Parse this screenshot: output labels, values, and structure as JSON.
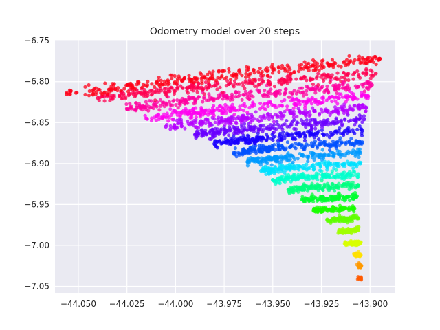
{
  "chart_data": {
    "type": "scatter",
    "title": "Odometry model over 20 steps",
    "xlabel": "",
    "ylabel": "",
    "xlim": [
      -44.062,
      -43.887
    ],
    "ylim": [
      -7.058,
      -6.749
    ],
    "x_ticks": [
      -44.05,
      -44.025,
      -44.0,
      -43.975,
      -43.95,
      -43.925,
      -43.9
    ],
    "x_tick_labels": [
      "−44.050",
      "−44.025",
      "−44.000",
      "−43.975",
      "−43.950",
      "−43.925",
      "−43.900"
    ],
    "y_ticks": [
      -6.75,
      -6.8,
      -6.85,
      -6.9,
      -6.95,
      -7.0,
      -7.05
    ],
    "y_tick_labels": [
      "−6.75",
      "−6.80",
      "−6.85",
      "−6.90",
      "−6.95",
      "−7.00",
      "−7.05"
    ],
    "grid": true,
    "background": "#EAEAF2",
    "gridline_color": "#FFFFFF",
    "colormap": "hsv",
    "series": [
      {
        "step": 0,
        "color": "#FF5A00",
        "points": [
          [
            -43.9055,
            -7.04
          ],
          [
            -43.905,
            -7.04
          ]
        ]
      },
      {
        "step": 1,
        "color": "#FF9A00",
        "points": [
          [
            -43.906,
            -7.025
          ],
          [
            -43.9053,
            -7.024
          ],
          [
            -43.9047,
            -7.026
          ]
        ]
      },
      {
        "step": 2,
        "color": "#FFE000",
        "points": [
          [
            -43.908,
            -7.012
          ],
          [
            -43.9062,
            -7.011
          ],
          [
            -43.9048,
            -7.012
          ]
        ]
      },
      {
        "step": 3,
        "color": "#D8FF00",
        "points": [
          [
            -43.913,
            -6.998
          ],
          [
            -43.909,
            -6.997
          ],
          [
            -43.905,
            -6.997
          ]
        ]
      },
      {
        "step": 4,
        "color": "#A0FF00",
        "points": [
          [
            -43.916,
            -6.983
          ],
          [
            -43.911,
            -6.982
          ],
          [
            -43.906,
            -6.981
          ]
        ]
      },
      {
        "step": 5,
        "color": "#60FF00",
        "points": [
          [
            -43.922,
            -6.969
          ],
          [
            -43.915,
            -6.968
          ],
          [
            -43.906,
            -6.967
          ]
        ]
      },
      {
        "step": 6,
        "color": "#1AFF00",
        "points": [
          [
            -43.929,
            -6.957
          ],
          [
            -43.92,
            -6.956
          ],
          [
            -43.908,
            -6.955
          ]
        ]
      },
      {
        "step": 7,
        "color": "#00FF30",
        "points": [
          [
            -43.935,
            -6.944
          ],
          [
            -43.923,
            -6.943
          ],
          [
            -43.907,
            -6.941
          ]
        ]
      },
      {
        "step": 8,
        "color": "#00FF80",
        "points": [
          [
            -43.942,
            -6.932
          ],
          [
            -43.928,
            -6.929
          ],
          [
            -43.906,
            -6.927
          ]
        ]
      },
      {
        "step": 9,
        "color": "#00FFCC",
        "points": [
          [
            -43.95,
            -6.92
          ],
          [
            -43.935,
            -6.917
          ],
          [
            -43.906,
            -6.913
          ]
        ]
      },
      {
        "step": 10,
        "color": "#00E0FF",
        "points": [
          [
            -43.956,
            -6.909
          ],
          [
            -43.94,
            -6.905
          ],
          [
            -43.905,
            -6.9
          ]
        ]
      },
      {
        "step": 11,
        "color": "#0099FF",
        "points": [
          [
            -43.963,
            -6.898
          ],
          [
            -43.945,
            -6.893
          ],
          [
            -43.905,
            -6.887
          ]
        ]
      },
      {
        "step": 12,
        "color": "#0050FF",
        "points": [
          [
            -43.97,
            -6.887
          ],
          [
            -43.95,
            -6.881
          ],
          [
            -43.904,
            -6.874
          ]
        ]
      },
      {
        "step": 13,
        "color": "#1A00FF",
        "points": [
          [
            -43.98,
            -6.876
          ],
          [
            -43.955,
            -6.869
          ],
          [
            -43.904,
            -6.86
          ]
        ]
      },
      {
        "step": 14,
        "color": "#6A00FF",
        "points": [
          [
            -43.99,
            -6.865
          ],
          [
            -43.96,
            -6.857
          ],
          [
            -43.903,
            -6.846
          ]
        ]
      },
      {
        "step": 15,
        "color": "#B400FF",
        "points": [
          [
            -44.005,
            -6.855
          ],
          [
            -43.965,
            -6.845
          ],
          [
            -43.902,
            -6.832
          ]
        ]
      },
      {
        "step": 16,
        "color": "#FF00F0",
        "points": [
          [
            -44.015,
            -6.845
          ],
          [
            -43.97,
            -6.832
          ],
          [
            -43.901,
            -6.818
          ]
        ]
      },
      {
        "step": 17,
        "color": "#FF00A0",
        "points": [
          [
            -44.025,
            -6.833
          ],
          [
            -43.975,
            -6.818
          ],
          [
            -43.899,
            -6.804
          ]
        ]
      },
      {
        "step": 18,
        "color": "#FF0050",
        "points": [
          [
            -44.04,
            -6.82
          ],
          [
            -43.98,
            -6.805
          ],
          [
            -43.897,
            -6.79
          ]
        ]
      },
      {
        "step": 19,
        "color": "#FF0018",
        "points": [
          [
            -44.056,
            -6.815
          ],
          [
            -43.985,
            -6.795
          ],
          [
            -43.895,
            -6.772
          ]
        ]
      }
    ]
  }
}
